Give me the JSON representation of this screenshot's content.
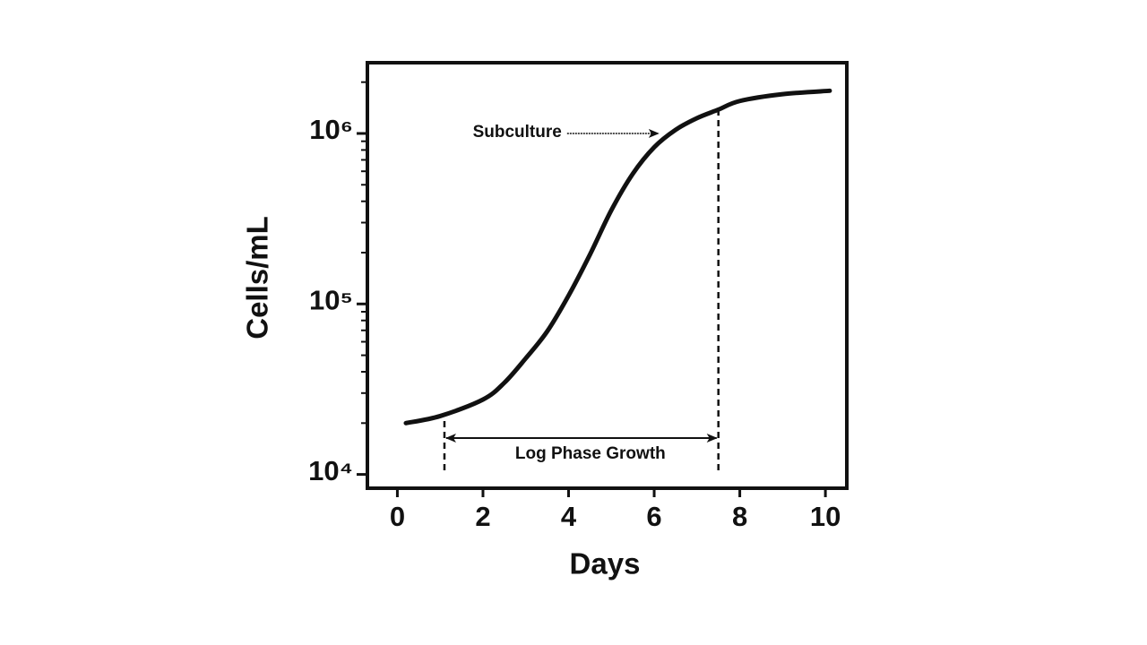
{
  "chart_data": {
    "type": "line",
    "x_label": "Days",
    "y_label": "Cells/mL",
    "y_scale": "log",
    "x": [
      0.2,
      1,
      2,
      2.5,
      3,
      3.5,
      4,
      4.5,
      5,
      5.5,
      6,
      6.5,
      7,
      7.5,
      8,
      9,
      10.1
    ],
    "series": [
      {
        "name": "Cells/mL",
        "color": "#111111",
        "values": [
          20000,
          22000,
          27500,
          34500,
          48000,
          69000,
          112000,
          195000,
          355000,
          580000,
          830000,
          1050000,
          1230000,
          1380000,
          1550000,
          1700000,
          1780000
        ]
      }
    ],
    "xlim": [
      -0.7,
      10.5
    ],
    "xticks": [
      0,
      2,
      4,
      6,
      8,
      10
    ],
    "ylim": [
      8300,
      2600000
    ],
    "yticks": [
      {
        "value": 10000,
        "label": "10⁴"
      },
      {
        "value": 100000,
        "label": "10⁵"
      },
      {
        "value": 1000000,
        "label": "10⁶"
      }
    ],
    "yminorticks": [
      20000,
      30000,
      40000,
      50000,
      60000,
      70000,
      80000,
      90000,
      200000,
      300000,
      400000,
      500000,
      600000,
      700000,
      800000,
      900000,
      2000000
    ],
    "subculture": {
      "label": "Subculture",
      "x": 6.1,
      "y": 1000000
    },
    "log_phase": {
      "label": "Log Phase Growth",
      "start": 1.1,
      "end": 7.5
    }
  }
}
